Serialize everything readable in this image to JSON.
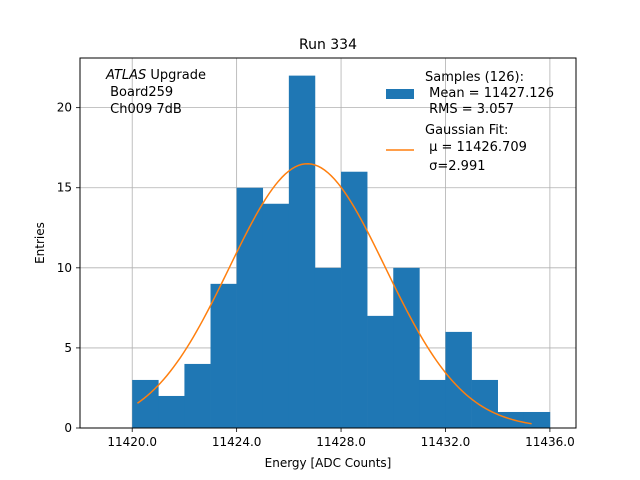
{
  "chart_data": {
    "type": "bar",
    "title": "Run 334",
    "xlabel": "Energy [ADC Counts]",
    "ylabel": "Entries",
    "xlim": [
      11418.0,
      11437.0
    ],
    "ylim": [
      0,
      23.1
    ],
    "grid": true,
    "legend_position": "top-right",
    "x_ticks": [
      11420,
      11424,
      11428,
      11432,
      11436
    ],
    "x_tick_labels": [
      "11420.0",
      "11424.0",
      "11428.0",
      "11432.0",
      "11436.0"
    ],
    "y_ticks": [
      0,
      5,
      10,
      15,
      20
    ],
    "y_tick_labels": [
      "0",
      "5",
      "10",
      "15",
      "20"
    ],
    "bin_edges": [
      11420,
      11421,
      11422,
      11423,
      11424,
      11425,
      11426,
      11427,
      11428,
      11429,
      11430,
      11431,
      11432,
      11433,
      11434,
      11435,
      11436
    ],
    "counts": [
      3,
      2,
      4,
      9,
      15,
      14,
      22,
      10,
      16,
      7,
      10,
      3,
      6,
      3,
      1,
      1
    ],
    "gaussian_fit": {
      "mu": 11426.709,
      "sigma": 2.991,
      "amplitude": 16.5,
      "x_range": [
        11420.2,
        11435.3
      ]
    },
    "colors": {
      "bars": "#1f77b4",
      "fit": "#ff7f0e",
      "grid": "#b0b0b0"
    },
    "annotation": {
      "line1_italic": "ATLAS",
      "line1_rest": " Upgrade",
      "line2": " Board259",
      "line3": " Ch009 7dB"
    },
    "legend": [
      {
        "kind": "bar",
        "lines": [
          "Samples (126):",
          " Mean = 11427.126",
          " RMS = 3.057"
        ]
      },
      {
        "kind": "line",
        "lines": [
          "Gaussian Fit:",
          " μ = 11426.709",
          " σ=2.991"
        ]
      }
    ]
  }
}
